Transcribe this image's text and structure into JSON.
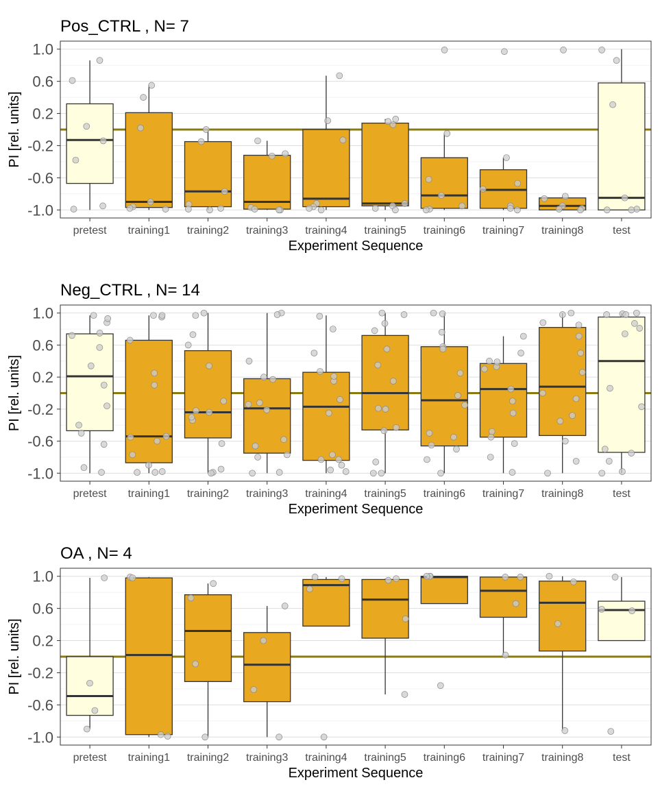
{
  "colors": {
    "training_fill": "#E8A820",
    "test_fill": "#FFFFE0",
    "box_stroke": "#333333",
    "reference_line": "#8B7A10",
    "point_fill": "#CCCCCC",
    "grid": "#DDDDDD"
  },
  "chart_data": [
    {
      "type": "boxplot",
      "title": "Pos_CTRL , N= 7",
      "xlabel": "Experiment Sequence",
      "ylabel": "PI [rel. units]",
      "ylim": [
        -1.1,
        1.1
      ],
      "yticks": [
        "1.0",
        "0.6",
        "0.2",
        "-0.2",
        "-0.6",
        "-1.0"
      ],
      "ytick_values": [
        1.0,
        0.6,
        0.2,
        -0.2,
        -0.6,
        -1.0
      ],
      "reference_line": 0.0,
      "grid": true,
      "categories": [
        "pretest",
        "training1",
        "training2",
        "training3",
        "training4",
        "training5",
        "training6",
        "training7",
        "training8",
        "test"
      ],
      "boxes": [
        {
          "kind": "test",
          "wlo": -1.0,
          "q1": -0.67,
          "med": -0.13,
          "q3": 0.32,
          "whi": 0.86
        },
        {
          "kind": "training",
          "wlo": -1.0,
          "q1": -0.97,
          "med": -0.9,
          "q3": 0.21,
          "whi": 0.55
        },
        {
          "kind": "training",
          "wlo": -1.0,
          "q1": -0.96,
          "med": -0.77,
          "q3": -0.15,
          "whi": 0.0
        },
        {
          "kind": "training",
          "wlo": -1.0,
          "q1": -0.99,
          "med": -0.9,
          "q3": -0.32,
          "whi": -0.14
        },
        {
          "kind": "training",
          "wlo": -1.0,
          "q1": -0.96,
          "med": -0.86,
          "q3": 0.0,
          "whi": 0.67
        },
        {
          "kind": "training",
          "wlo": -1.0,
          "q1": -0.95,
          "med": -0.92,
          "q3": 0.08,
          "whi": 0.13
        },
        {
          "kind": "training",
          "wlo": -1.0,
          "q1": -0.98,
          "med": -0.82,
          "q3": -0.35,
          "whi": -0.05
        },
        {
          "kind": "training",
          "wlo": -1.0,
          "q1": -0.98,
          "med": -0.75,
          "q3": -0.5,
          "whi": -0.35
        },
        {
          "kind": "training",
          "wlo": -1.0,
          "q1": -1.0,
          "med": -0.95,
          "q3": -0.85,
          "whi": -0.83
        },
        {
          "kind": "test",
          "wlo": -1.0,
          "q1": -1.0,
          "med": -0.85,
          "q3": 0.58,
          "whi": 1.0
        }
      ],
      "points": [
        [
          0.86,
          0.61,
          0.04,
          -0.14,
          -0.38,
          -0.95,
          -0.99
        ],
        [
          0.55,
          0.4,
          0.02,
          -0.9,
          -0.96,
          -0.98,
          -0.99
        ],
        [
          0.0,
          -0.15,
          -0.77,
          -0.93,
          -0.98,
          -0.99,
          -1.0
        ],
        [
          -0.14,
          -0.3,
          -0.33,
          -0.97,
          -0.99,
          -1.0,
          -1.0
        ],
        [
          0.67,
          0.11,
          -0.13,
          -0.92,
          -0.96,
          -0.98,
          -1.0
        ],
        [
          0.13,
          0.1,
          0.06,
          -0.92,
          -0.95,
          -0.98,
          -1.0
        ],
        [
          0.99,
          -0.05,
          -0.62,
          -0.82,
          -0.95,
          -0.99,
          -1.0
        ],
        [
          0.97,
          -0.35,
          -0.67,
          -0.74,
          -0.95,
          -0.98,
          -1.0
        ],
        [
          0.99,
          -0.83,
          -0.86,
          -0.95,
          -0.98,
          -0.99,
          -1.0
        ],
        [
          0.99,
          0.86,
          0.31,
          -0.85,
          -0.99,
          -1.0,
          -1.0
        ]
      ]
    },
    {
      "type": "boxplot",
      "title": "Neg_CTRL , N= 14",
      "xlabel": "Experiment Sequence",
      "ylabel": "PI [rel. units]",
      "ylim": [
        -1.1,
        1.1
      ],
      "yticks": [
        "1.0",
        "0.6",
        "0.2",
        "-0.2",
        "-0.6",
        "-1.0"
      ],
      "ytick_values": [
        1.0,
        0.6,
        0.2,
        -0.2,
        -0.6,
        -1.0
      ],
      "reference_line": 0.0,
      "grid": true,
      "categories": [
        "pretest",
        "training1",
        "training2",
        "training3",
        "training4",
        "training5",
        "training6",
        "training7",
        "training8",
        "test"
      ],
      "boxes": [
        {
          "kind": "test",
          "wlo": -1.0,
          "q1": -0.47,
          "med": 0.21,
          "q3": 0.74,
          "whi": 0.97
        },
        {
          "kind": "training",
          "wlo": -1.0,
          "q1": -0.87,
          "med": -0.54,
          "q3": 0.66,
          "whi": 0.97
        },
        {
          "kind": "training",
          "wlo": -1.0,
          "q1": -0.56,
          "med": -0.24,
          "q3": 0.53,
          "whi": 1.0
        },
        {
          "kind": "training",
          "wlo": -1.0,
          "q1": -0.75,
          "med": -0.19,
          "q3": 0.18,
          "whi": 1.0
        },
        {
          "kind": "training",
          "wlo": -1.0,
          "q1": -0.84,
          "med": -0.17,
          "q3": 0.26,
          "whi": 0.97
        },
        {
          "kind": "training",
          "wlo": -1.0,
          "q1": -0.46,
          "med": 0.0,
          "q3": 0.72,
          "whi": 1.0
        },
        {
          "kind": "training",
          "wlo": -1.0,
          "q1": -0.66,
          "med": -0.09,
          "q3": 0.58,
          "whi": 1.0
        },
        {
          "kind": "training",
          "wlo": -1.0,
          "q1": -0.55,
          "med": 0.05,
          "q3": 0.37,
          "whi": 0.71
        },
        {
          "kind": "training",
          "wlo": -1.0,
          "q1": -0.53,
          "med": 0.08,
          "q3": 0.82,
          "whi": 1.0
        },
        {
          "kind": "test",
          "wlo": -1.0,
          "q1": -0.74,
          "med": 0.4,
          "q3": 0.95,
          "whi": 1.0
        }
      ],
      "points": [
        [
          0.97,
          0.88,
          0.75,
          0.57,
          0.34,
          0.1,
          -0.16,
          -0.4,
          -0.5,
          -0.64,
          -0.93,
          -0.99,
          0.72,
          0.93
        ],
        [
          0.97,
          0.95,
          0.25,
          0.1,
          -0.54,
          -0.6,
          -0.77,
          -0.9,
          -0.98,
          -0.99,
          0.97,
          -0.55,
          -0.99,
          0.66
        ],
        [
          1.0,
          0.97,
          0.73,
          0.6,
          0.34,
          -0.1,
          -0.24,
          -0.34,
          -0.63,
          -0.95,
          -0.99,
          -1.0,
          -0.22,
          -0.3
        ],
        [
          1.0,
          0.98,
          0.4,
          0.2,
          -0.12,
          -0.21,
          -0.58,
          -0.66,
          -0.77,
          -0.8,
          -0.99,
          -1.0,
          0.17,
          -0.14
        ],
        [
          0.96,
          0.8,
          0.5,
          0.27,
          0.15,
          -0.08,
          -0.25,
          -0.77,
          -0.83,
          -0.83,
          -0.9,
          -0.96,
          -0.98,
          0.21
        ],
        [
          1.0,
          0.98,
          0.87,
          0.78,
          0.55,
          0.35,
          0.15,
          -0.2,
          -0.19,
          -0.43,
          -0.47,
          -0.86,
          -1.0,
          -1.0
        ],
        [
          1.0,
          0.99,
          0.76,
          0.58,
          0.55,
          0.25,
          -0.03,
          -0.15,
          -0.5,
          -0.55,
          -0.7,
          -0.83,
          -1.0,
          -0.65
        ],
        [
          0.71,
          0.5,
          0.4,
          0.33,
          0.3,
          0.05,
          -0.1,
          -0.25,
          -0.48,
          -0.55,
          -0.63,
          -0.8,
          -0.99,
          0.39
        ],
        [
          1.0,
          0.98,
          0.88,
          0.85,
          0.71,
          0.5,
          0.26,
          -0.07,
          -0.28,
          -0.35,
          -0.6,
          -0.85,
          -1.0,
          0.0
        ],
        [
          1.0,
          0.99,
          0.98,
          0.87,
          0.81,
          0.74,
          0.06,
          -0.17,
          -0.7,
          -0.75,
          -0.85,
          -0.98,
          -1.0,
          0.98
        ]
      ]
    },
    {
      "type": "boxplot",
      "title": "OA , N= 4",
      "xlabel": "Experiment Sequence",
      "ylabel": "PI [rel. units]",
      "ylim": [
        -1.1,
        1.1
      ],
      "yticks": [
        "1.0",
        "0.6",
        "0.2",
        "-0.2",
        "-0.6",
        "-1.0"
      ],
      "ytick_values": [
        1.0,
        0.6,
        0.2,
        -0.2,
        -0.6,
        -1.0
      ],
      "reference_line": 0.0,
      "grid": true,
      "categories": [
        "pretest",
        "training1",
        "training2",
        "training3",
        "training4",
        "training5",
        "training6",
        "training7",
        "training8",
        "test"
      ],
      "boxes": [
        {
          "kind": "test",
          "wlo": -0.9,
          "q1": -0.73,
          "med": -0.49,
          "q3": 0.0,
          "whi": 0.98
        },
        {
          "kind": "training",
          "wlo": -1.0,
          "q1": -0.97,
          "med": 0.02,
          "q3": 0.98,
          "whi": 0.99
        },
        {
          "kind": "training",
          "wlo": -1.0,
          "q1": -0.31,
          "med": 0.32,
          "q3": 0.77,
          "whi": 0.91
        },
        {
          "kind": "training",
          "wlo": -1.0,
          "q1": -0.56,
          "med": -0.1,
          "q3": 0.3,
          "whi": 0.63
        },
        {
          "kind": "training",
          "wlo": 0.38,
          "q1": 0.38,
          "med": 0.89,
          "q3": 0.96,
          "whi": 0.99
        },
        {
          "kind": "training",
          "wlo": -0.47,
          "q1": 0.23,
          "med": 0.71,
          "q3": 0.96,
          "whi": 0.97
        },
        {
          "kind": "training",
          "wlo": 0.66,
          "q1": 0.66,
          "med": 0.99,
          "q3": 1.0,
          "whi": 1.0
        },
        {
          "kind": "training",
          "wlo": 0.02,
          "q1": 0.49,
          "med": 0.82,
          "q3": 0.99,
          "whi": 0.99
        },
        {
          "kind": "training",
          "wlo": -0.92,
          "q1": 0.07,
          "med": 0.67,
          "q3": 0.94,
          "whi": 1.0
        },
        {
          "kind": "test",
          "wlo": 0.2,
          "q1": 0.2,
          "med": 0.58,
          "q3": 0.69,
          "whi": 0.99
        }
      ],
      "points": [
        [
          0.98,
          -0.33,
          -0.67,
          -0.9
        ],
        [
          0.99,
          0.98,
          -0.97,
          -0.99
        ],
        [
          0.91,
          0.73,
          -0.09,
          -1.0
        ],
        [
          0.63,
          0.2,
          -0.41,
          -1.0
        ],
        [
          0.99,
          0.97,
          0.84,
          -1.0
        ],
        [
          0.97,
          0.95,
          0.47,
          -0.47
        ],
        [
          1.0,
          1.0,
          1.0,
          -0.36
        ],
        [
          0.99,
          0.99,
          0.66,
          0.02
        ],
        [
          1.0,
          0.93,
          0.41,
          -0.92
        ],
        [
          0.99,
          0.59,
          0.57,
          -0.93
        ]
      ]
    }
  ]
}
